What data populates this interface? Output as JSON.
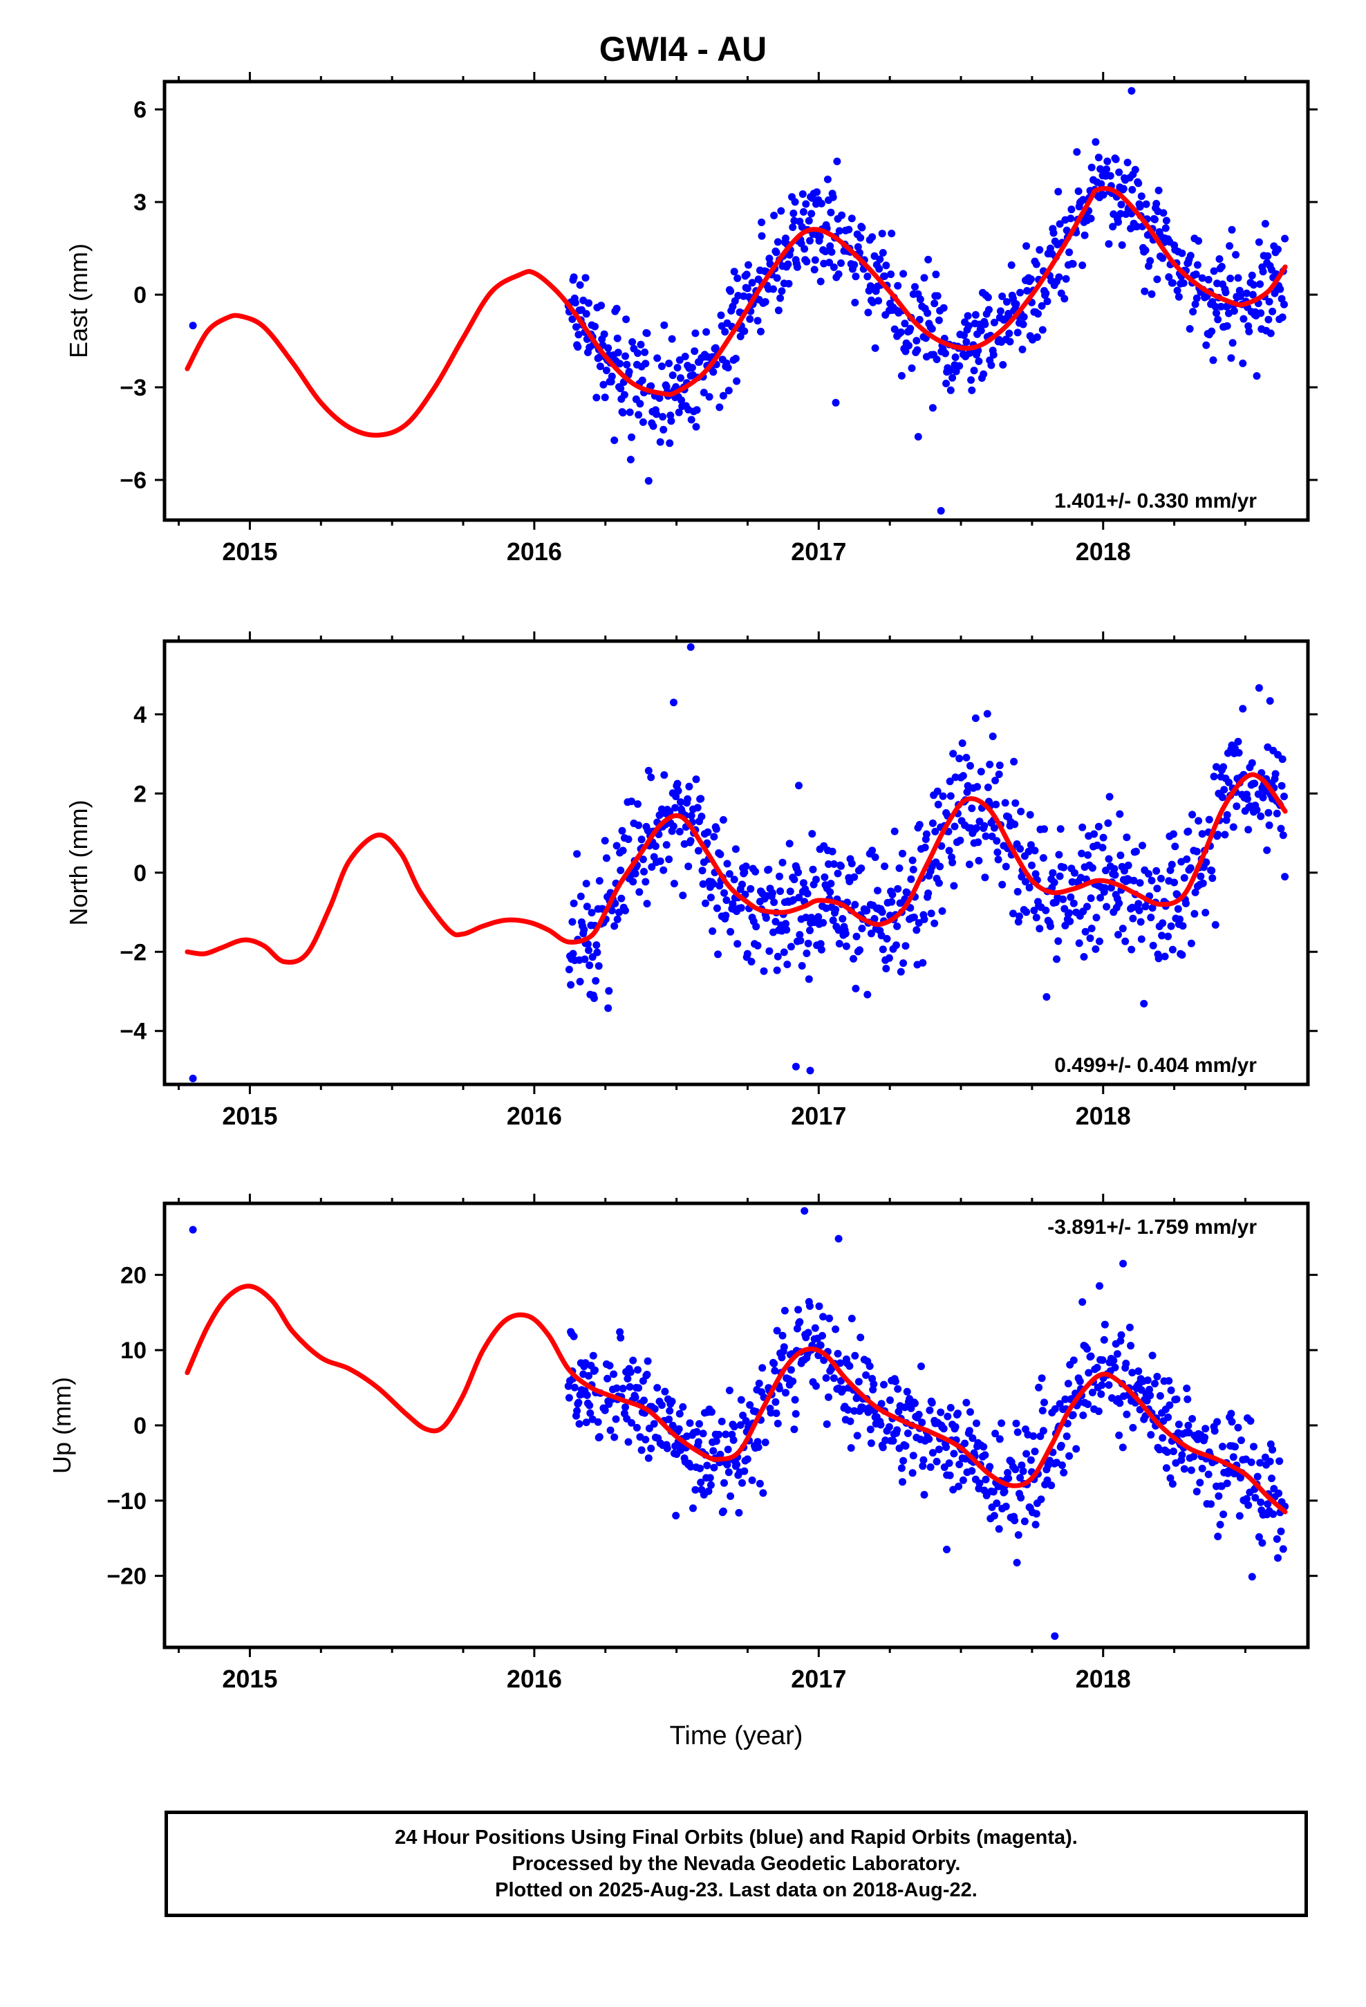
{
  "title": "GWI4 - AU",
  "colors": {
    "points": "#0000ff",
    "model": "#ff0000",
    "frame": "#000000"
  },
  "footer": {
    "line1": "24 Hour Positions Using Final Orbits (blue) and Rapid Orbits (magenta).",
    "line2": "Processed by the Nevada Geodetic Laboratory.",
    "line3": "Plotted on 2025-Aug-23. Last data on 2018-Aug-22."
  },
  "chart_data": [
    {
      "type": "scatter",
      "component": "east",
      "ylabel": "East (mm)",
      "xlabel": "",
      "xlim": [
        2014.7,
        2018.72
      ],
      "ylim": [
        -7.3,
        6.9
      ],
      "xticks": [
        2015,
        2016,
        2017,
        2018
      ],
      "yticks": [
        -6,
        -3,
        0,
        3,
        6
      ],
      "ytick_labels": [
        "−6",
        "−3",
        "0",
        "3",
        "6"
      ],
      "rate_label": "1.401+/- 0.330 mm/yr",
      "rate_label_position": "bottom-right",
      "model": {
        "x": [
          2014.78,
          2014.85,
          2014.92,
          2014.97,
          2015.05,
          2015.15,
          2015.25,
          2015.35,
          2015.45,
          2015.55,
          2015.65,
          2015.75,
          2015.85,
          2015.95,
          2016.0,
          2016.08,
          2016.15,
          2016.25,
          2016.35,
          2016.45,
          2016.5,
          2016.6,
          2016.7,
          2016.8,
          2016.9,
          2016.97,
          2017.05,
          2017.15,
          2017.25,
          2017.35,
          2017.45,
          2017.55,
          2017.65,
          2017.75,
          2017.85,
          2017.95,
          2017.98,
          2018.05,
          2018.15,
          2018.25,
          2018.35,
          2018.45,
          2018.5,
          2018.58,
          2018.64
        ],
        "y": [
          -2.4,
          -1.2,
          -0.75,
          -0.7,
          -1.05,
          -2.2,
          -3.5,
          -4.3,
          -4.55,
          -4.2,
          -3.0,
          -1.4,
          0.1,
          0.65,
          0.7,
          0.1,
          -0.7,
          -2.0,
          -2.9,
          -3.2,
          -3.15,
          -2.5,
          -1.2,
          0.3,
          1.6,
          2.1,
          1.9,
          1.1,
          0.1,
          -1.0,
          -1.6,
          -1.7,
          -1.1,
          0.0,
          1.4,
          3.0,
          3.4,
          3.3,
          2.3,
          1.0,
          0.2,
          -0.25,
          -0.3,
          0.1,
          0.9
        ]
      },
      "outliers": [
        [
          2014.8,
          -1.0
        ],
        [
          2017.43,
          -7.0
        ],
        [
          2017.35,
          -4.6
        ],
        [
          2016.8,
          1.9
        ],
        [
          2017.06,
          -3.5
        ],
        [
          2018.1,
          6.6
        ]
      ]
    },
    {
      "type": "scatter",
      "component": "north",
      "ylabel": "North (mm)",
      "xlabel": "",
      "xlim": [
        2014.7,
        2018.72
      ],
      "ylim": [
        -5.35,
        5.85
      ],
      "xticks": [
        2015,
        2016,
        2017,
        2018
      ],
      "yticks": [
        -4,
        -2,
        0,
        2,
        4
      ],
      "ytick_labels": [
        "−4",
        "−2",
        "0",
        "2",
        "4"
      ],
      "rate_label": "0.499+/- 0.404 mm/yr",
      "rate_label_position": "bottom-right",
      "model": {
        "x": [
          2014.78,
          2014.84,
          2014.9,
          2014.98,
          2015.05,
          2015.12,
          2015.2,
          2015.28,
          2015.35,
          2015.45,
          2015.53,
          2015.6,
          2015.7,
          2015.75,
          2015.82,
          2015.9,
          2015.98,
          2016.05,
          2016.12,
          2016.2,
          2016.25,
          2016.3,
          2016.38,
          2016.45,
          2016.52,
          2016.6,
          2016.68,
          2016.75,
          2016.8,
          2016.88,
          2016.95,
          2017.0,
          2017.08,
          2017.15,
          2017.22,
          2017.3,
          2017.38,
          2017.45,
          2017.52,
          2017.6,
          2017.68,
          2017.75,
          2017.82,
          2017.9,
          2017.98,
          2018.05,
          2018.12,
          2018.2,
          2018.28,
          2018.35,
          2018.42,
          2018.5,
          2018.56,
          2018.64
        ],
        "y": [
          -2.0,
          -2.05,
          -1.9,
          -1.7,
          -1.85,
          -2.25,
          -2.05,
          -0.9,
          0.3,
          0.95,
          0.5,
          -0.5,
          -1.45,
          -1.55,
          -1.35,
          -1.2,
          -1.25,
          -1.45,
          -1.75,
          -1.6,
          -1.0,
          -0.3,
          0.55,
          1.25,
          1.4,
          0.6,
          -0.3,
          -0.75,
          -0.95,
          -1.0,
          -0.85,
          -0.7,
          -0.8,
          -1.15,
          -1.3,
          -0.9,
          0.2,
          1.2,
          1.85,
          1.6,
          0.6,
          -0.2,
          -0.5,
          -0.4,
          -0.2,
          -0.3,
          -0.55,
          -0.8,
          -0.6,
          0.4,
          1.6,
          2.4,
          2.35,
          1.55
        ]
      },
      "outliers": [
        [
          2014.8,
          -5.2
        ],
        [
          2016.92,
          -4.9
        ],
        [
          2016.97,
          -5.0
        ],
        [
          2016.55,
          5.7
        ],
        [
          2016.49,
          4.3
        ],
        [
          2016.93,
          2.2
        ]
      ]
    },
    {
      "type": "scatter",
      "component": "up",
      "ylabel": "Up (mm)",
      "xlabel": "Time (year)",
      "xlim": [
        2014.7,
        2018.72
      ],
      "ylim": [
        -29.5,
        29.5
      ],
      "xticks": [
        2015,
        2016,
        2017,
        2018
      ],
      "yticks": [
        -20,
        -10,
        0,
        10,
        20
      ],
      "ytick_labels": [
        "−20",
        "−10",
        "0",
        "10",
        "20"
      ],
      "rate_label": "-3.891+/- 1.759 mm/yr",
      "rate_label_position": "top-right",
      "model": {
        "x": [
          2014.78,
          2014.85,
          2014.92,
          2015.0,
          2015.08,
          2015.15,
          2015.25,
          2015.35,
          2015.45,
          2015.55,
          2015.62,
          2015.68,
          2015.75,
          2015.82,
          2015.9,
          2015.98,
          2016.05,
          2016.12,
          2016.2,
          2016.3,
          2016.4,
          2016.5,
          2016.6,
          2016.65,
          2016.72,
          2016.8,
          2016.88,
          2016.95,
          2017.02,
          2017.1,
          2017.2,
          2017.3,
          2017.4,
          2017.5,
          2017.6,
          2017.68,
          2017.75,
          2017.82,
          2017.88,
          2017.95,
          2018.0,
          2018.05,
          2018.12,
          2018.2,
          2018.3,
          2018.4,
          2018.5,
          2018.58,
          2018.64
        ],
        "y": [
          7.0,
          13.0,
          17.0,
          18.5,
          16.5,
          12.5,
          9.0,
          7.5,
          5.0,
          1.5,
          -0.5,
          -0.2,
          4.0,
          10.0,
          14.0,
          14.5,
          12.0,
          7.5,
          5.0,
          3.5,
          2.0,
          -1.5,
          -4.0,
          -4.5,
          -3.5,
          2.0,
          7.5,
          10.0,
          9.5,
          6.0,
          2.5,
          0.5,
          -1.0,
          -3.0,
          -6.5,
          -8.0,
          -7.0,
          -2.5,
          2.0,
          5.5,
          6.8,
          6.0,
          3.5,
          0.0,
          -3.0,
          -4.5,
          -6.5,
          -9.5,
          -11.5
        ]
      },
      "outliers": [
        [
          2014.8,
          26.0
        ],
        [
          2016.95,
          28.5
        ],
        [
          2017.83,
          -28.0
        ],
        [
          2018.07,
          21.5
        ],
        [
          2017.07,
          24.8
        ],
        [
          2017.45,
          -16.5
        ]
      ]
    }
  ]
}
